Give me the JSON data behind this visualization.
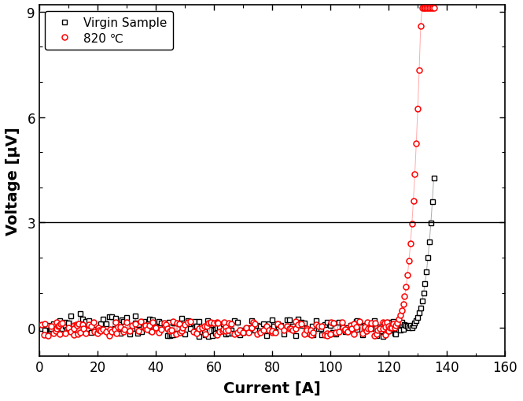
{
  "xlabel": "Current [A]",
  "ylabel": "Voltage [μV]",
  "xlim": [
    0,
    160
  ],
  "ylim": [
    -0.8,
    9.2
  ],
  "yticks": [
    0,
    3,
    6,
    9
  ],
  "xticks": [
    0,
    20,
    40,
    60,
    80,
    100,
    120,
    140,
    160
  ],
  "hline_y": 3.0,
  "legend_labels": [
    "Virgin Sample",
    "820 ℃"
  ],
  "virgin_line_color": "#aaaaaa",
  "virgin_marker_color": "#000000",
  "sample_line_color": "#ffaaaa",
  "sample_marker_color": "#ff0000",
  "noise_seed": 7,
  "virgin_ic": 128.0,
  "sample_ic": 122.0,
  "n_noise_pts_virgin": 160,
  "n_noise_pts_sample": 180
}
